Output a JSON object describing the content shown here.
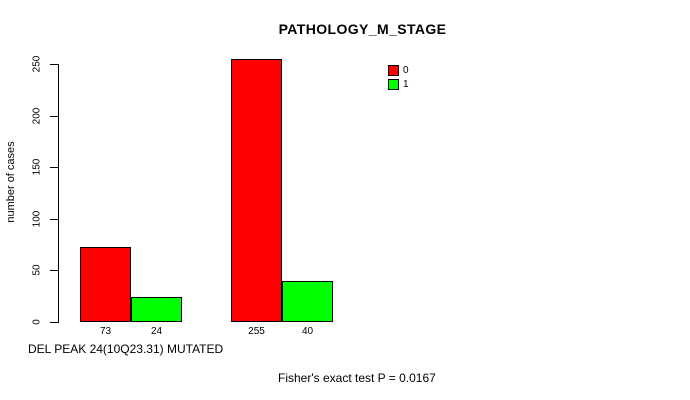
{
  "page": {
    "background": "#ffffff"
  },
  "chart_data": {
    "type": "bar",
    "title": "PATHOLOGY_M_STAGE",
    "ylabel": "number of cases",
    "xlabel": "DEL PEAK 24(10Q23.31) MUTATED",
    "annotation": "Fisher's exact test P = 0.0167",
    "ylim": [
      0,
      250
    ],
    "yticks": [
      0,
      50,
      100,
      150,
      200,
      250
    ],
    "grid": false,
    "bar_borders": "#000000",
    "legend": {
      "position": "top-right",
      "entries": [
        {
          "label": "0",
          "color": "#ff0000"
        },
        {
          "label": "1",
          "color": "#00ff00"
        }
      ]
    },
    "series": [
      {
        "name": "0",
        "color": "#ff0000",
        "values": [
          73,
          255
        ]
      },
      {
        "name": "1",
        "color": "#00ff00",
        "values": [
          24,
          40
        ]
      }
    ],
    "bar_value_labels": [
      "73",
      "24",
      "255",
      "40"
    ]
  }
}
